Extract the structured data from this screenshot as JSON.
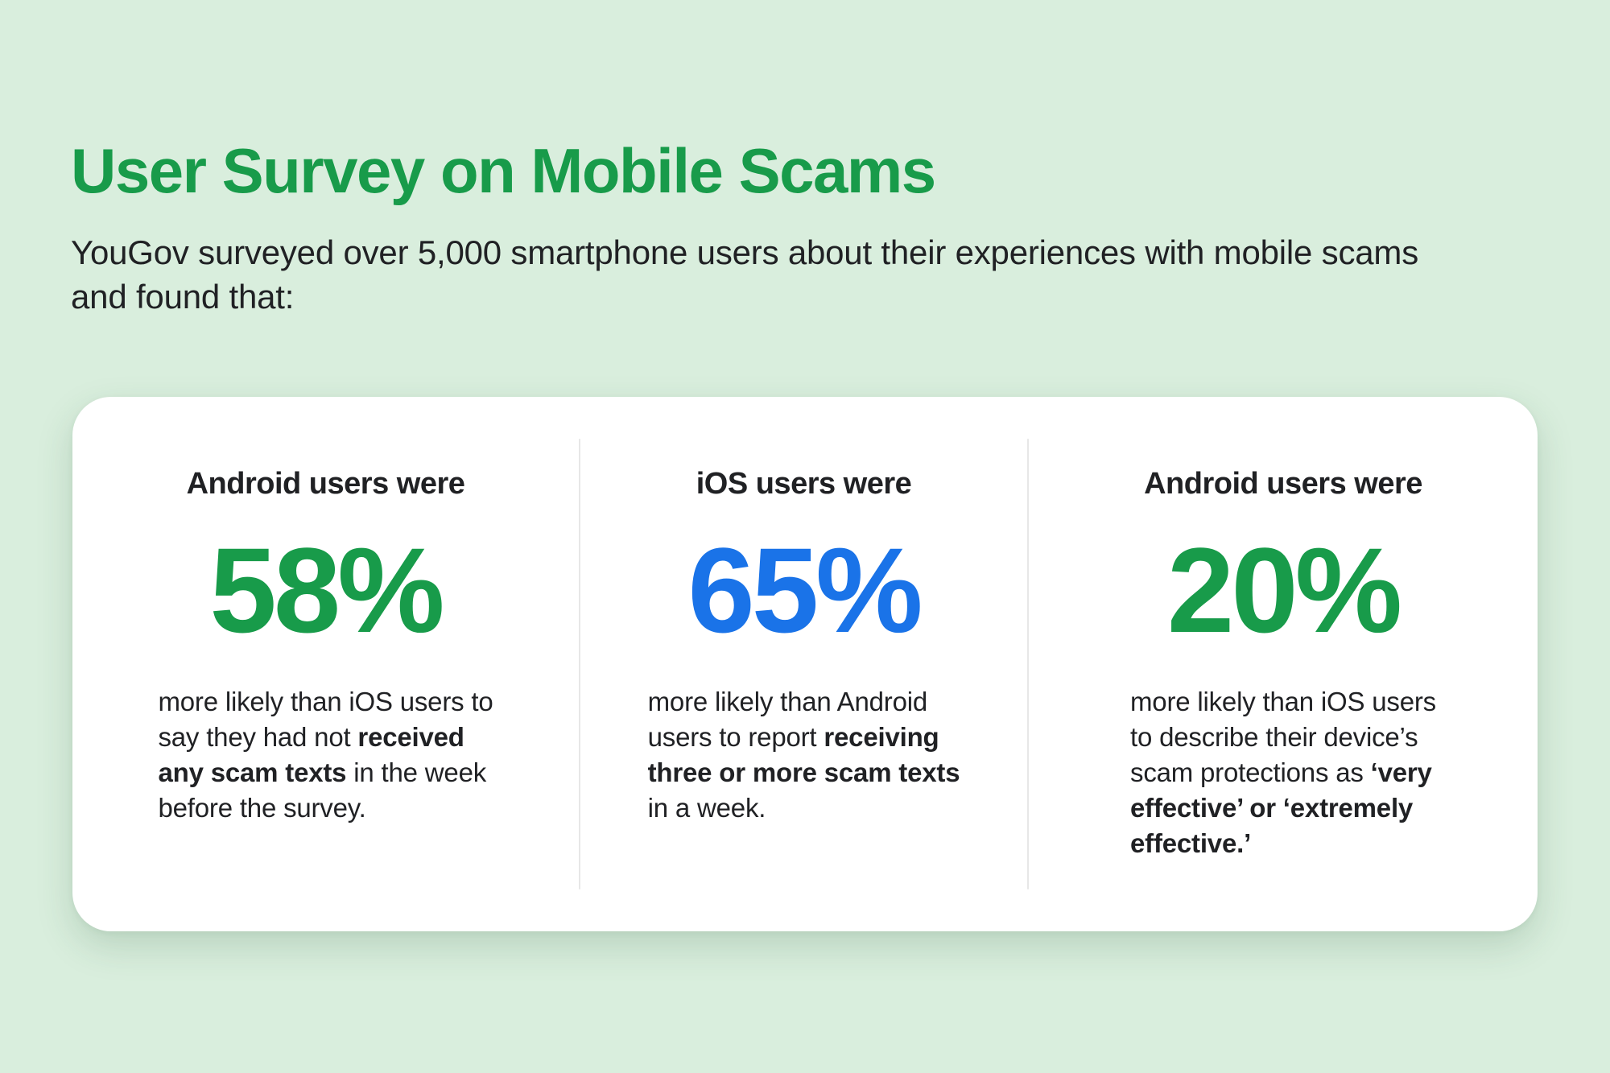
{
  "header": {
    "title": "User Survey on Mobile Scams",
    "subtitle": "YouGov surveyed over 5,000 smartphone users about their experiences with mobile scams\nand found that:"
  },
  "colors": {
    "background": "#d9eedd",
    "green": "#189b4a",
    "blue": "#1a73e8",
    "text": "#202124",
    "card_background": "#ffffff",
    "divider": "#e7e7e7"
  },
  "card": {
    "columns": [
      {
        "heading": "Android users were",
        "stat": "58%",
        "stat_color": "#189b4a",
        "body": [
          {
            "t": "more likely than iOS users to\nsay they had not ",
            "b": false
          },
          {
            "t": "received\nany scam texts",
            "b": true
          },
          {
            "t": " in the week\nbefore the survey.",
            "b": false
          }
        ]
      },
      {
        "heading": "iOS users were",
        "stat": "65%",
        "stat_color": "#1a73e8",
        "body": [
          {
            "t": "more likely than Android\nusers to report ",
            "b": false
          },
          {
            "t": "receiving\nthree or more scam texts",
            "b": true
          },
          {
            "t": "\nin a week.",
            "b": false
          }
        ]
      },
      {
        "heading": "Android users were",
        "stat": "20%",
        "stat_color": "#189b4a",
        "body": [
          {
            "t": "more likely than iOS users\nto describe their device’s\nscam protections as ",
            "b": false
          },
          {
            "t": "‘very\neffective’ or ‘extremely\neffective.’",
            "b": true
          }
        ]
      }
    ]
  },
  "chart_data": {
    "type": "table",
    "title": "User Survey on Mobile Scams",
    "subtitle": "YouGov surveyed over 5,000 smartphone users about their experiences with mobile scams and found that:",
    "stats": [
      {
        "group": "Android users",
        "value": 58,
        "unit": "%",
        "color": "#189b4a",
        "description": "Android users were 58% more likely than iOS users to say they had not received any scam texts in the week before the survey."
      },
      {
        "group": "iOS users",
        "value": 65,
        "unit": "%",
        "color": "#1a73e8",
        "description": "iOS users were 65% more likely than Android users to report receiving three or more scam texts in a week."
      },
      {
        "group": "Android users",
        "value": 20,
        "unit": "%",
        "color": "#189b4a",
        "description": "Android users were 20% more likely than iOS users to describe their device’s scam protections as ‘very effective’ or ‘extremely effective.’"
      }
    ]
  }
}
